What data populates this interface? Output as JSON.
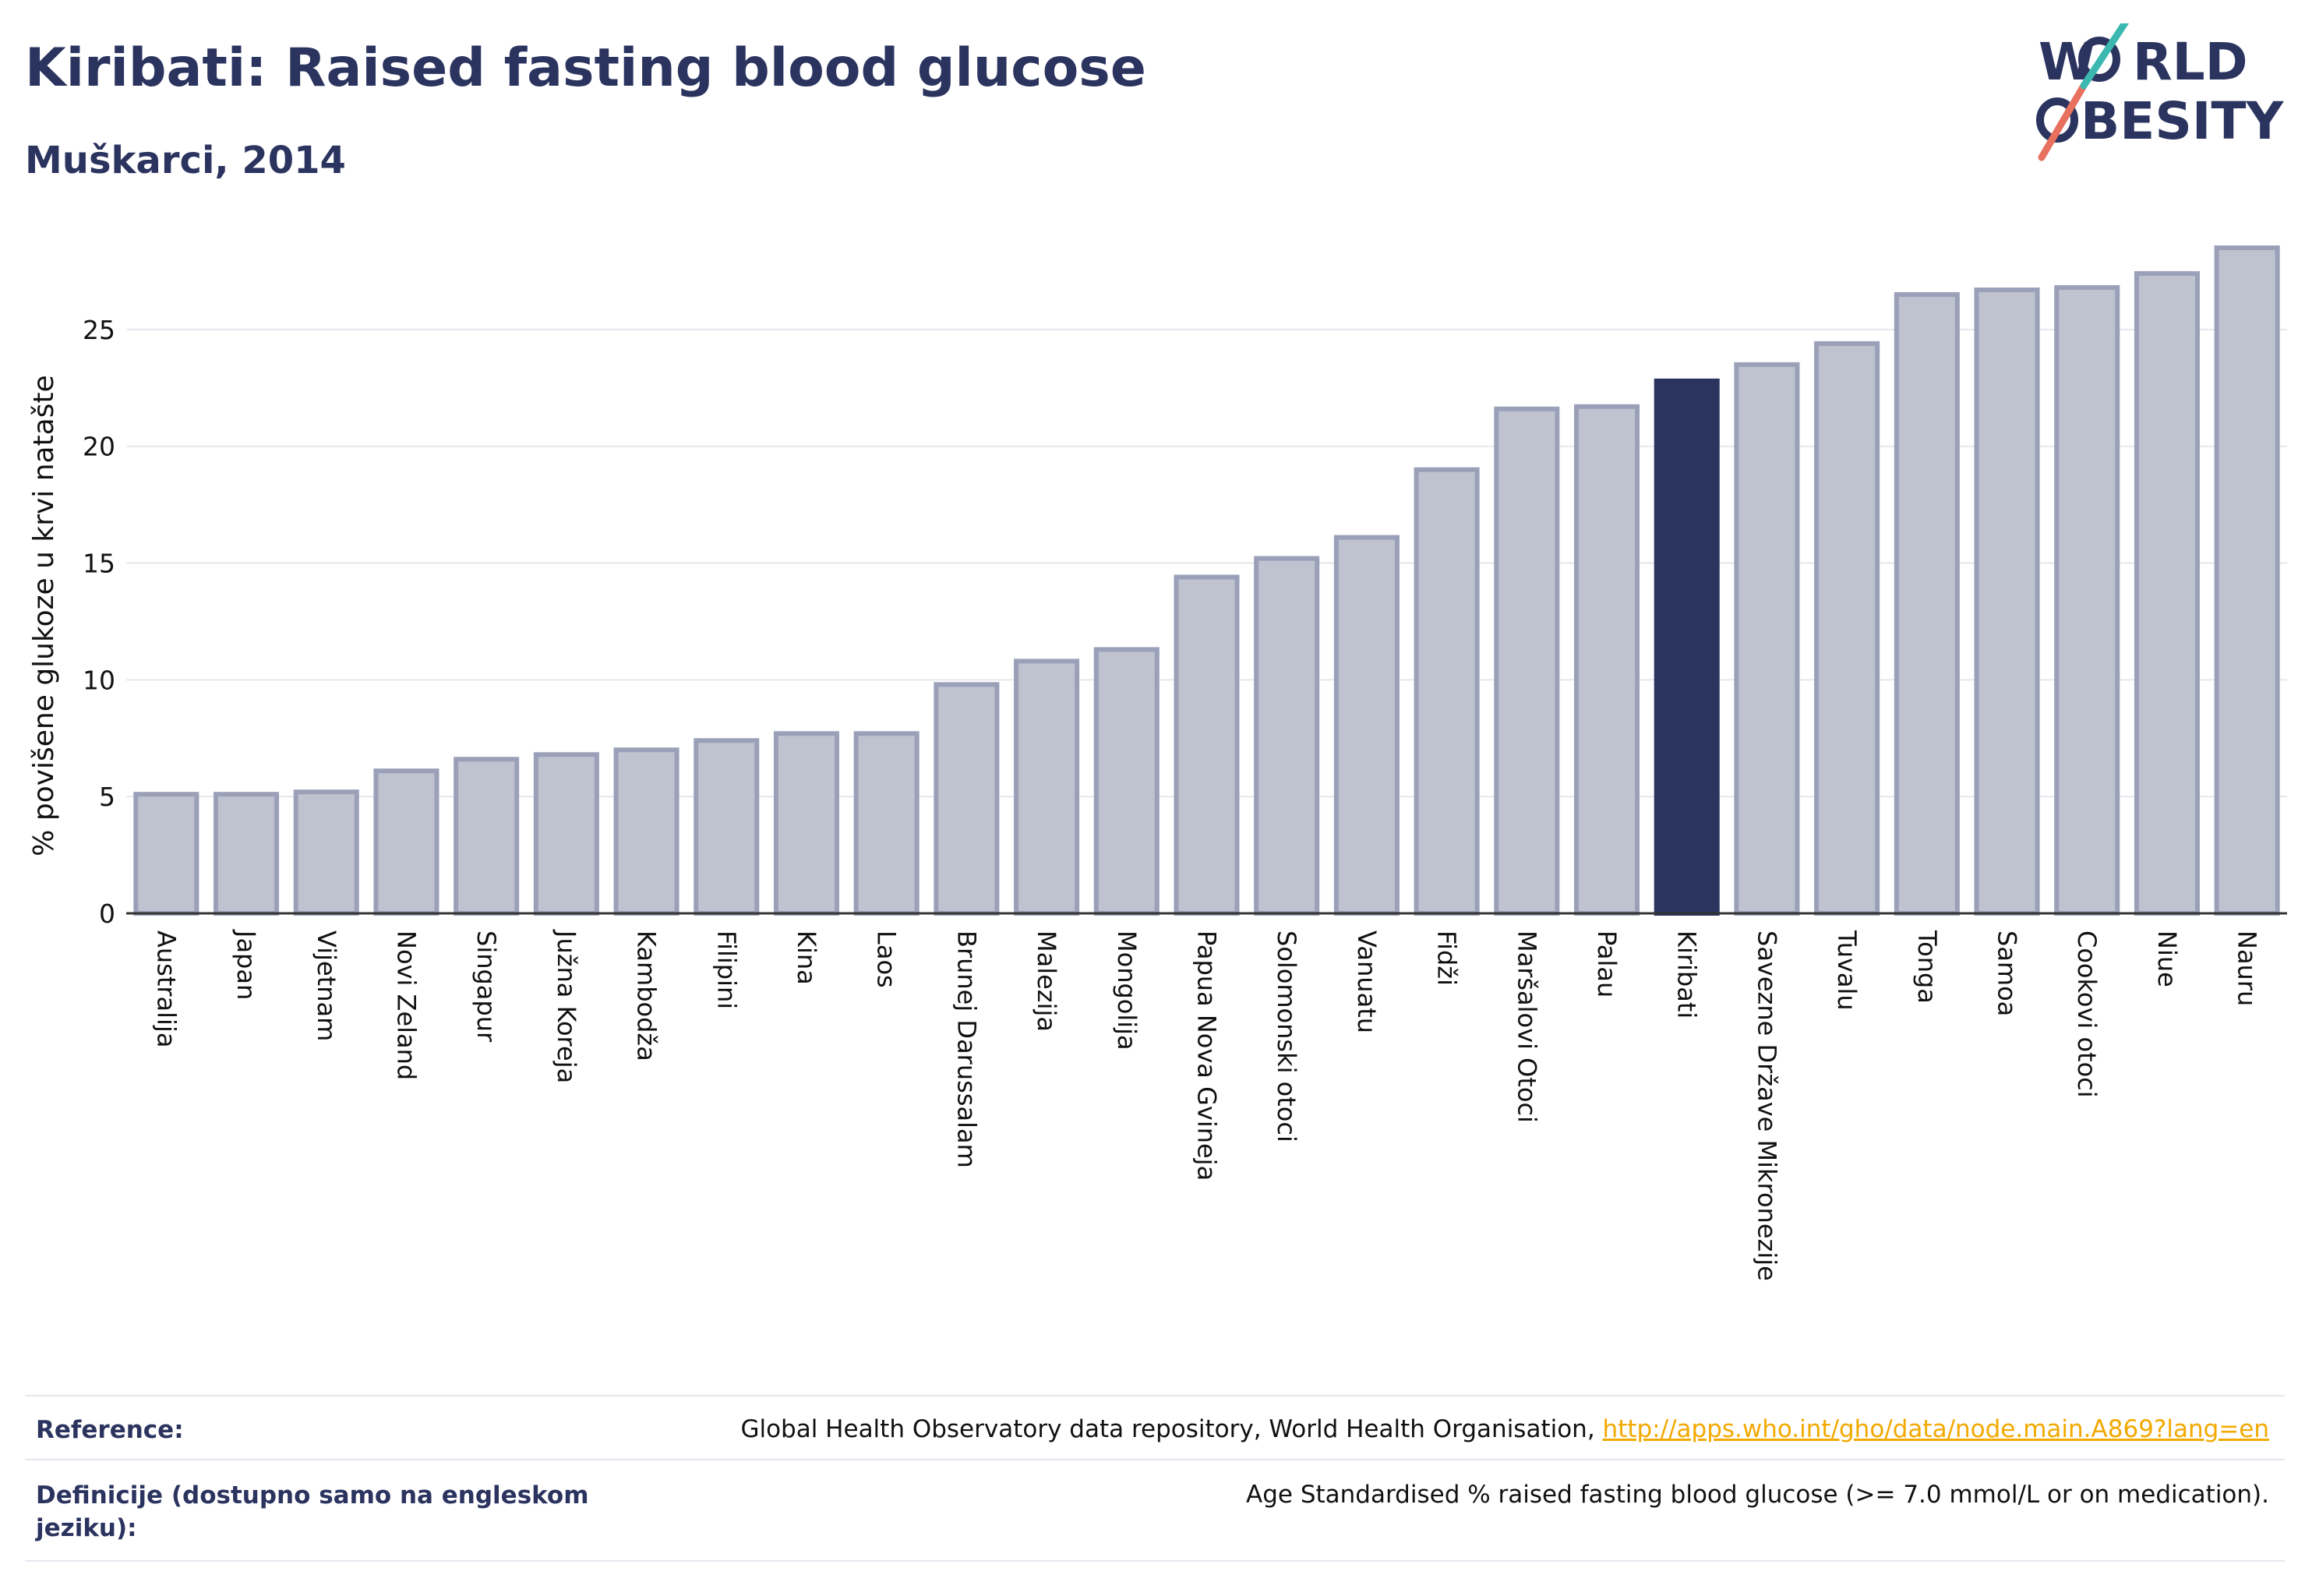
{
  "title": "Kiribati: Raised fasting blood glucose",
  "subtitle": "Muškarci, 2014",
  "logo": {
    "line1_a": "W",
    "line1_b": "RLD",
    "line2_b": "BESITY"
  },
  "colors": {
    "highlight": "#2b335f",
    "bar": "#bfc3d0",
    "bar_border": "#9aa0b8",
    "grid": "#e6e7ee",
    "text": "#2b335f",
    "link": "#f2a900"
  },
  "chart_data": {
    "type": "bar",
    "ylabel": "% povišene glukoze u krvi natašte",
    "ylim": [
      0,
      28.5
    ],
    "yticks": [
      0,
      5,
      10,
      15,
      20,
      25
    ],
    "grid": true,
    "highlight": "Kiribati",
    "categories": [
      "Australija",
      "Japan",
      "Vijetnam",
      "Novi Zeland",
      "Singapur",
      "Južna Koreja",
      "Kambodža",
      "Filipini",
      "Kina",
      "Laos",
      "Brunej Darussalam",
      "Malezija",
      "Mongolija",
      "Papua Nova Gvineja",
      "Solomonski otoci",
      "Vanuatu",
      "Fidži",
      "Maršalovi Otoci",
      "Palau",
      "Kiribati",
      "Savezne Države Mikronezije",
      "Tuvalu",
      "Tonga",
      "Samoa",
      "Cookovi otoci",
      "Niue",
      "Nauru"
    ],
    "values": [
      5.1,
      5.1,
      5.2,
      6.1,
      6.6,
      6.8,
      7.0,
      7.4,
      7.7,
      7.7,
      9.8,
      10.8,
      11.3,
      14.4,
      15.2,
      16.1,
      19.0,
      21.6,
      21.7,
      22.8,
      23.5,
      24.4,
      26.5,
      26.7,
      26.8,
      27.4,
      28.5
    ]
  },
  "footer": {
    "reference_label": "Reference:",
    "reference_text": "Global Health Observatory data repository, World Health Organisation,",
    "reference_link": "http://apps.who.int/gho/data/node.main.A869?lang=en",
    "definition_label": "Definicije (dostupno samo na engleskom jeziku):",
    "definition_text": "Age Standardised % raised fasting blood glucose (>= 7.0 mmol/L or on medication)."
  }
}
